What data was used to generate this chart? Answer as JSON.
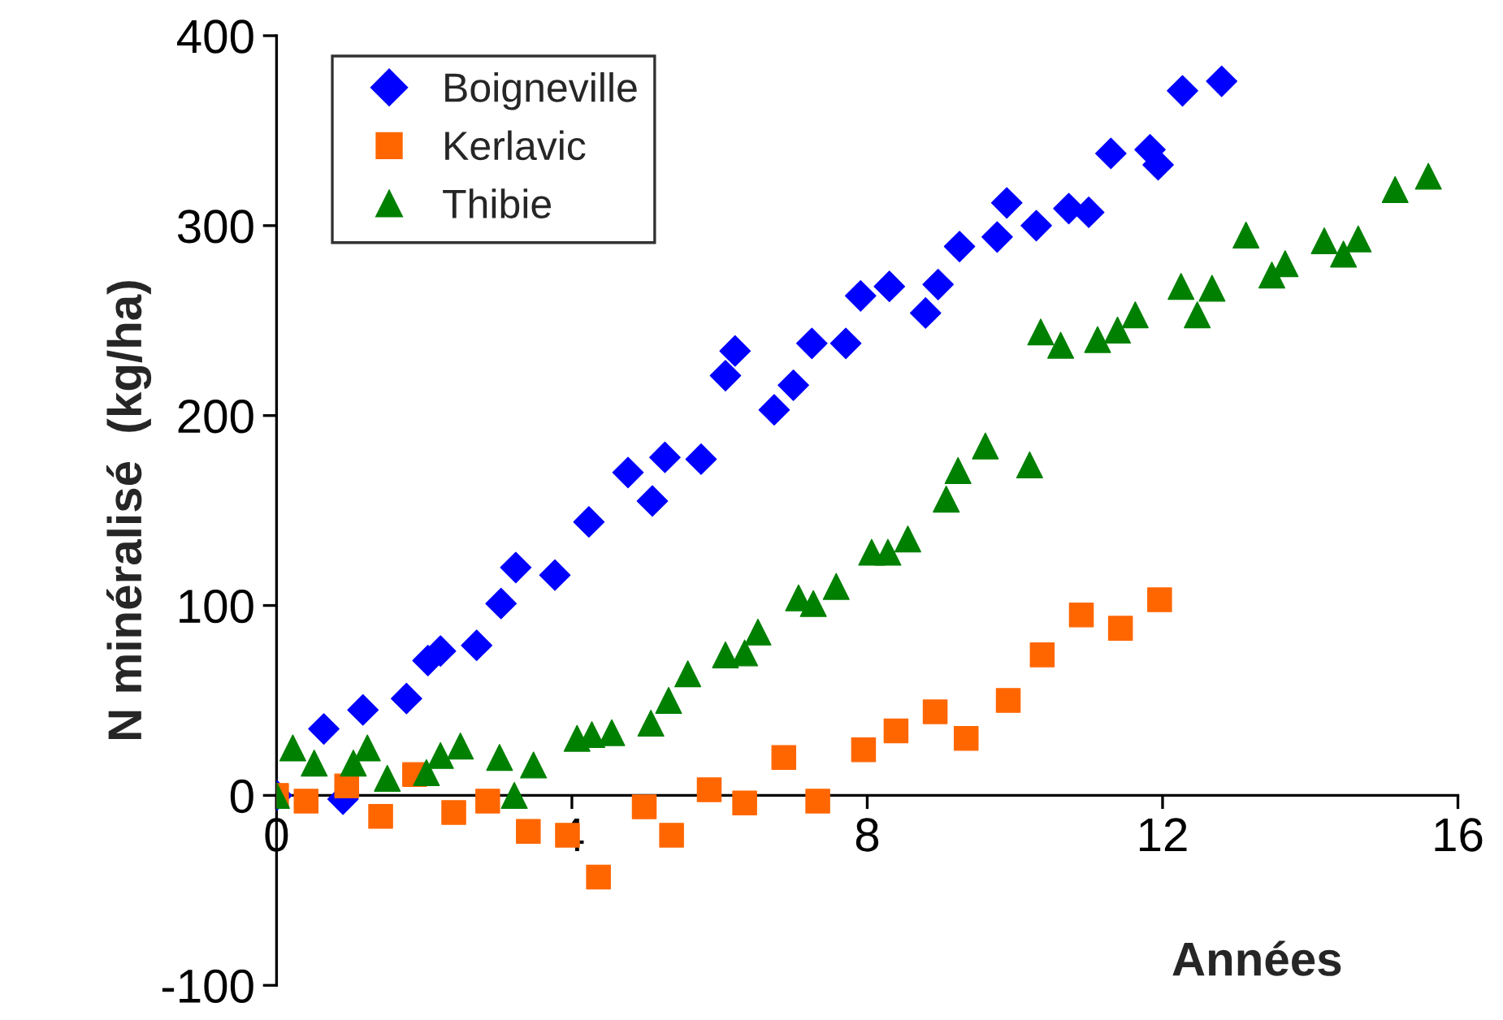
{
  "chart_data": {
    "type": "scatter",
    "xlabel": "Années",
    "ylabel": "N minéralisé  (kg/ha)",
    "xlim": [
      0,
      16
    ],
    "xticks": [
      0,
      4,
      8,
      12,
      16
    ],
    "ylim": [
      -100,
      400
    ],
    "yticks": [
      -100,
      0,
      100,
      200,
      300,
      400
    ],
    "grid": false,
    "legend": "top left",
    "series": [
      {
        "name": "Boigneville",
        "color": "#0000ff",
        "marker": "diamond",
        "x": [
          0,
          0.64,
          0.9,
          1.17,
          1.76,
          2.05,
          2.22,
          2.71,
          3.04,
          3.24,
          3.77,
          4.23,
          4.76,
          5.09,
          5.26,
          5.75,
          6.08,
          6.21,
          6.74,
          7.0,
          7.25,
          7.71,
          7.91,
          8.3,
          8.79,
          8.96,
          9.25,
          9.76,
          9.89,
          10.29,
          10.73,
          11.0,
          11.3,
          11.83,
          11.94,
          12.27,
          12.8
        ],
        "values": [
          0,
          35,
          -2,
          45,
          51,
          71,
          76,
          79,
          101,
          120,
          116,
          144,
          170,
          155,
          178,
          177,
          221,
          234,
          203,
          216,
          238,
          238,
          263,
          268,
          254,
          269,
          289,
          294,
          312,
          300,
          309,
          307,
          338,
          340,
          332,
          371,
          376
        ]
      },
      {
        "name": "Kerlavic",
        "color": "#ff6600",
        "marker": "square",
        "x": [
          0,
          0.4,
          0.95,
          1.41,
          1.87,
          2.4,
          2.86,
          3.41,
          3.94,
          4.36,
          4.98,
          5.35,
          5.86,
          6.34,
          6.87,
          7.33,
          7.95,
          8.39,
          8.92,
          9.34,
          9.91,
          10.37,
          10.9,
          11.43,
          11.96
        ],
        "values": [
          0,
          -3,
          5,
          -11,
          11,
          -9,
          -3,
          -19,
          -21,
          -43,
          -6,
          -21,
          3,
          -4,
          20,
          -3,
          24,
          34,
          44,
          30,
          50,
          74,
          95,
          88,
          103
        ]
      },
      {
        "name": "Thibie",
        "color": "#008000",
        "marker": "triangle",
        "x": [
          0,
          0.22,
          0.51,
          1.04,
          1.23,
          1.5,
          2.03,
          2.22,
          2.49,
          3.02,
          3.22,
          3.48,
          4.07,
          4.27,
          4.54,
          5.07,
          5.31,
          5.57,
          6.08,
          6.34,
          6.52,
          7.07,
          7.27,
          7.58,
          8.06,
          8.28,
          8.55,
          9.07,
          9.23,
          9.6,
          10.2,
          10.35,
          10.62,
          11.12,
          11.39,
          11.63,
          12.25,
          12.47,
          12.67,
          13.13,
          13.48,
          13.66,
          14.19,
          14.45,
          14.65,
          15.15,
          15.6
        ],
        "values": [
          0,
          25,
          17,
          17,
          25,
          9,
          12,
          21,
          26,
          20,
          0,
          16,
          30,
          32,
          33,
          38,
          50,
          64,
          74,
          75,
          86,
          104,
          101,
          110,
          128,
          128,
          135,
          156,
          171,
          184,
          174,
          244,
          237,
          240,
          245,
          253,
          268,
          253,
          267,
          295,
          274,
          280,
          292,
          285,
          293,
          319,
          326
        ]
      }
    ]
  }
}
